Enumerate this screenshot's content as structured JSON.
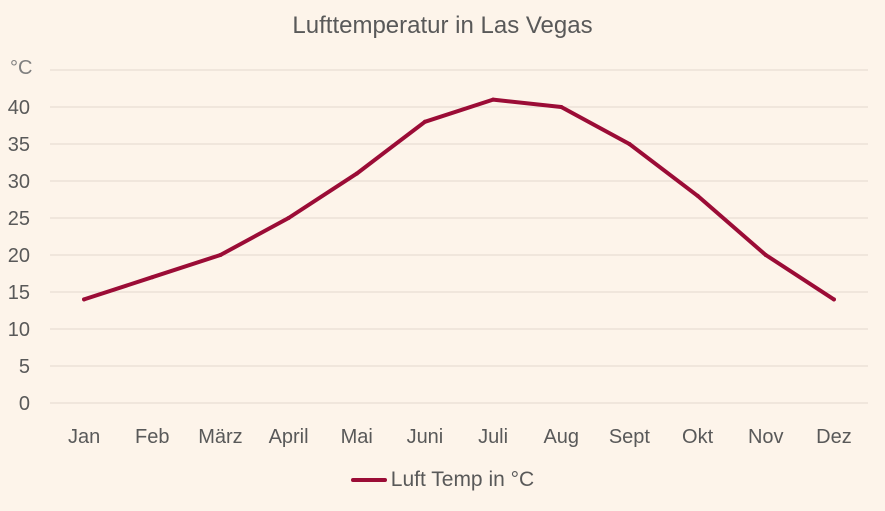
{
  "chart_data": {
    "type": "line",
    "title": "Lufttemperatur in Las Vegas",
    "y_unit": "°C",
    "categories": [
      "Jan",
      "Feb",
      "März",
      "April",
      "Mai",
      "Juni",
      "Juli",
      "Aug",
      "Sept",
      "Okt",
      "Nov",
      "Dez"
    ],
    "series": [
      {
        "name": "Luft Temp in °C",
        "color": "#9b0c36",
        "values": [
          14,
          17,
          20,
          25,
          31,
          38,
          41,
          40,
          35,
          28,
          20,
          14
        ]
      }
    ],
    "ylim": [
      0,
      45
    ],
    "yticks": [
      0,
      5,
      10,
      15,
      20,
      25,
      30,
      35,
      40
    ],
    "grid": true,
    "legend_position": "bottom"
  }
}
